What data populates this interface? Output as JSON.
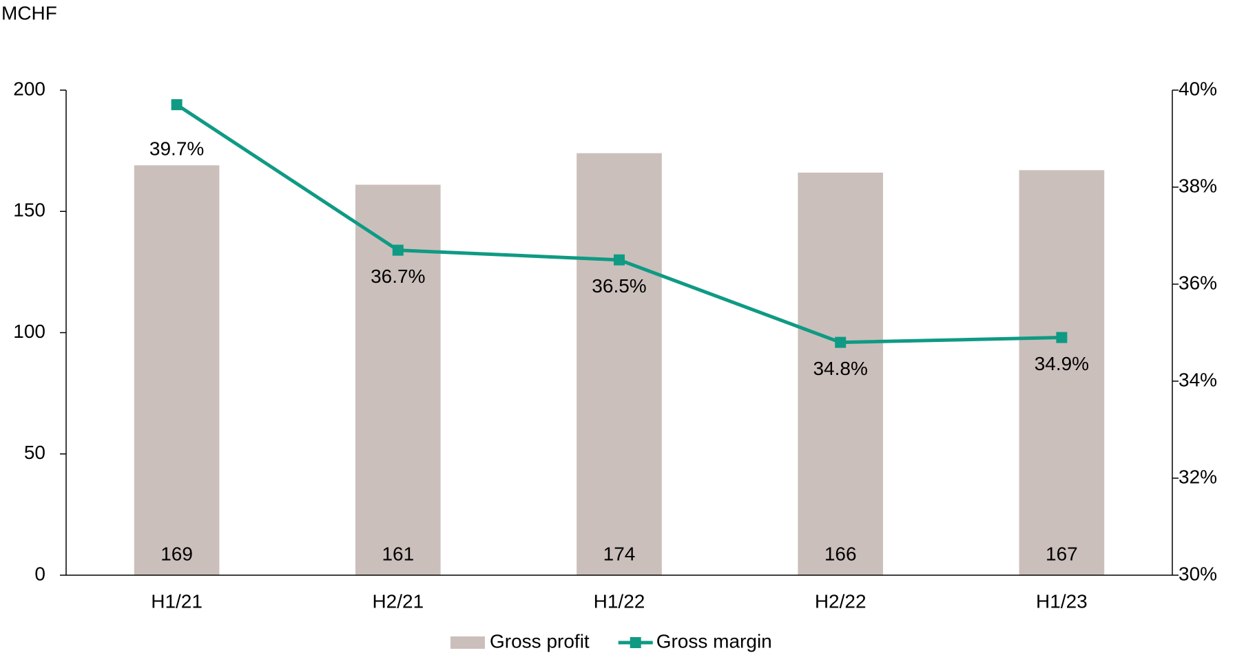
{
  "chart_data": {
    "type": "bar_line",
    "y_label": "MCHF",
    "categories": [
      "H1/21",
      "H2/21",
      "H1/22",
      "H2/22",
      "H1/23"
    ],
    "series": [
      {
        "name": "Gross profit",
        "type": "bar",
        "color": "#cbbfbb",
        "values": [
          169,
          161,
          174,
          166,
          167
        ]
      },
      {
        "name": "Gross margin",
        "type": "line",
        "axis": "y2",
        "color": "#0f9a84",
        "values": [
          39.7,
          36.7,
          36.5,
          34.8,
          34.9
        ],
        "value_labels": [
          "39.7%",
          "36.7%",
          "36.5%",
          "34.8%",
          "34.9%"
        ]
      }
    ],
    "ylim": [
      0,
      200
    ],
    "yticks": [
      0,
      50,
      100,
      150,
      200
    ],
    "y2lim": [
      30,
      40
    ],
    "y2ticks": [
      {
        "value": 30,
        "label": "30%"
      },
      {
        "value": 32,
        "label": "32%"
      },
      {
        "value": 34,
        "label": "34%"
      },
      {
        "value": 36,
        "label": "36%"
      },
      {
        "value": 38,
        "label": "38%"
      },
      {
        "value": 40,
        "label": "40%"
      }
    ],
    "legend": "bottom"
  }
}
